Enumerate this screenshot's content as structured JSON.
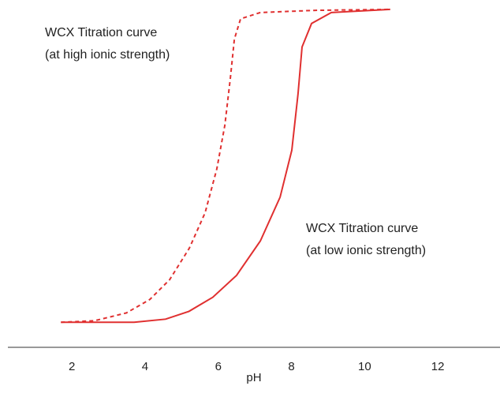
{
  "chart_data": {
    "type": "line",
    "xlabel": "pH",
    "xlim": [
      0.25,
      13.7
    ],
    "xticks": [
      2,
      4,
      6,
      8,
      10,
      12
    ],
    "ylim": [
      -0.08,
      1.03
    ],
    "series": [
      {
        "color": "#e03030",
        "style": "solid",
        "x": [
          1.7,
          3.7,
          4.56,
          5.2,
          5.85,
          6.5,
          7.15,
          7.69,
          8.01,
          8.18,
          8.29,
          8.55,
          9.09,
          10.7
        ],
        "values": [
          0,
          0,
          0.01,
          0.035,
          0.08,
          0.15,
          0.26,
          0.4,
          0.55,
          0.73,
          0.88,
          0.955,
          0.99,
          1
        ]
      },
      {
        "color": "#e03030",
        "style": "dashed",
        "x": [
          1.7,
          2.62,
          3.49,
          4.13,
          4.67,
          5.21,
          5.64,
          5.96,
          6.18,
          6.33,
          6.44,
          6.61,
          7.15,
          8.66,
          10.7
        ],
        "values": [
          0,
          0.005,
          0.03,
          0.073,
          0.136,
          0.237,
          0.35,
          0.49,
          0.63,
          0.78,
          0.905,
          0.97,
          0.99,
          0.997,
          1
        ]
      }
    ],
    "annotations": [
      {
        "lines": [
          "WCX Titration curve",
          "(at high ionic strength)"
        ]
      },
      {
        "lines": [
          "WCX Titration curve",
          "(at low ionic strength)"
        ]
      }
    ]
  }
}
